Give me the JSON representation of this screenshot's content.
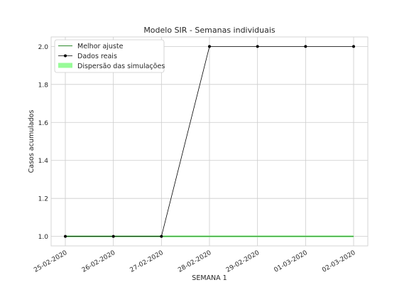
{
  "chart_data": {
    "type": "line",
    "title": "Modelo SIR - Semanas individuais",
    "xlabel": "SEMANA 1",
    "ylabel": "Casos acumulados",
    "x": [
      "25-02-2020",
      "26-02-2020",
      "27-02-2020",
      "28-02-2020",
      "29-02-2020",
      "01-03-2020",
      "02-03-2020"
    ],
    "ylim": [
      0.95,
      2.05
    ],
    "yticks": [
      1.0,
      1.2,
      1.4,
      1.6,
      1.8,
      2.0
    ],
    "ytick_labels": [
      "1.0",
      "1.2",
      "1.4",
      "1.6",
      "1.8",
      "2.0"
    ],
    "grid": true,
    "legend_position": "top-left",
    "series": [
      {
        "name": "Melhor ajuste",
        "style": "line",
        "color": "#2e8b2e",
        "values": [
          1,
          1,
          1,
          1,
          1,
          1,
          1
        ]
      },
      {
        "name": "Dados reais",
        "style": "line-markers",
        "color": "#000000",
        "values": [
          1,
          1,
          1,
          2,
          2,
          2,
          2
        ]
      },
      {
        "name": "Dispersão das simulações",
        "style": "band",
        "color": "#98fb98",
        "lower": [
          1,
          1,
          1,
          1,
          1,
          1,
          1
        ],
        "upper": [
          1,
          1,
          1,
          1,
          1,
          1,
          1
        ]
      }
    ]
  }
}
